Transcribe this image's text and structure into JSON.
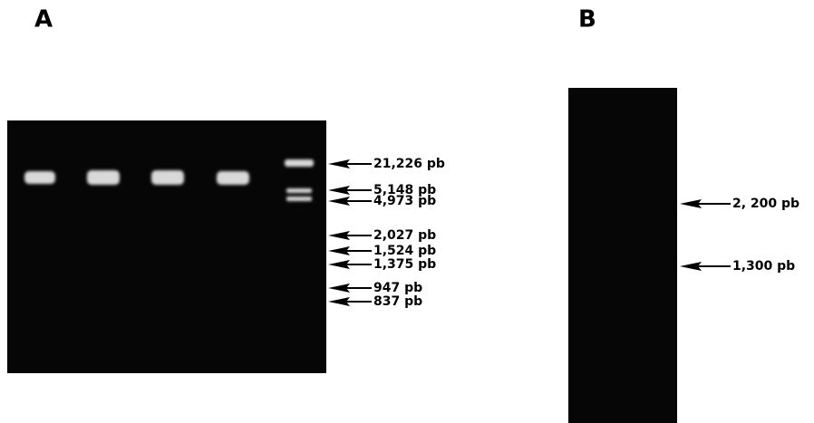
{
  "panels": [
    {
      "label": "A",
      "markers": [
        "21,226 pb",
        "5,148 pb",
        "4,973 pb",
        "2,027 pb",
        "1,524 pb",
        "1,375 pb",
        "947 pb",
        "837 pb"
      ]
    },
    {
      "label": "B",
      "markers": [
        "2, 200 pb",
        "1,300 pb"
      ]
    }
  ]
}
